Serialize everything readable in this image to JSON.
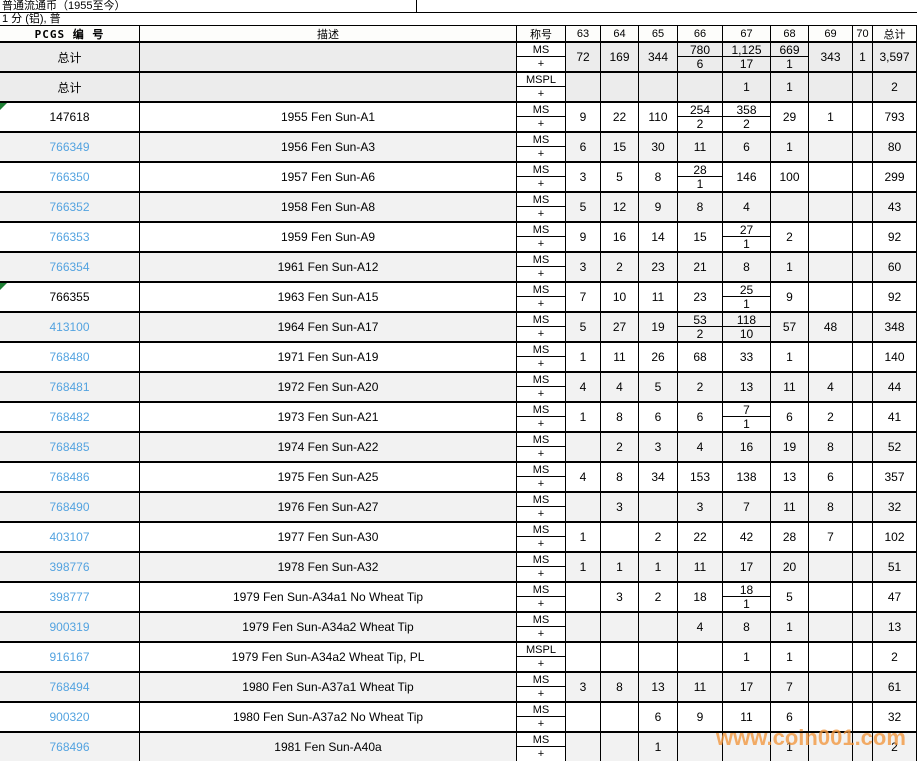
{
  "page": {
    "title": "普通流通币（1955至今）",
    "subtitle": "1 分 (铝), 普",
    "watermark": "www.coin001.com"
  },
  "colors": {
    "link_blue": "#53a3e0",
    "watermark_orange": "#f2963c",
    "flag_green": "#1e7e34",
    "stripe_gray": "#f2f2f2",
    "summary_gray": "#ececec"
  },
  "table": {
    "plus_label": "+",
    "headers": {
      "id": "PCGS 编 号",
      "desc": "描述",
      "grade": "称号",
      "grades": [
        "63",
        "64",
        "65",
        "66",
        "67",
        "68",
        "69",
        "70"
      ],
      "total": "总计"
    },
    "summary_rows": [
      {
        "id": "总计",
        "desc": "",
        "grade": "MS",
        "cells": [
          {
            "v": "72"
          },
          {
            "v": "169"
          },
          {
            "v": "344"
          },
          {
            "v": "780",
            "p": "6"
          },
          {
            "v": "1,125",
            "p": "17"
          },
          {
            "v": "669",
            "p": "1"
          },
          {
            "v": "343"
          },
          {
            "v": "1"
          }
        ],
        "total": "3,597"
      },
      {
        "id": "总计",
        "desc": "",
        "grade": "MSPL",
        "cells": [
          null,
          null,
          null,
          null,
          {
            "v": "1"
          },
          {
            "v": "1"
          },
          null,
          null
        ],
        "total": "2"
      }
    ],
    "rows": [
      {
        "id": "147618",
        "link": false,
        "flag": true,
        "desc": "1955 Fen Sun-A1",
        "grade": "MS",
        "cells": [
          {
            "v": "9"
          },
          {
            "v": "22"
          },
          {
            "v": "110"
          },
          {
            "v": "254",
            "p": "2"
          },
          {
            "v": "358",
            "p": "2"
          },
          {
            "v": "29"
          },
          {
            "v": "1"
          },
          null
        ],
        "total": "793"
      },
      {
        "id": "766349",
        "link": true,
        "flag": false,
        "desc": "1956 Fen Sun-A3",
        "grade": "MS",
        "cells": [
          {
            "v": "6"
          },
          {
            "v": "15"
          },
          {
            "v": "30"
          },
          {
            "v": "11"
          },
          {
            "v": "6"
          },
          {
            "v": "1"
          },
          null,
          null
        ],
        "total": "80"
      },
      {
        "id": "766350",
        "link": true,
        "flag": false,
        "desc": "1957 Fen Sun-A6",
        "grade": "MS",
        "cells": [
          {
            "v": "3"
          },
          {
            "v": "5"
          },
          {
            "v": "8"
          },
          {
            "v": "28",
            "p": "1"
          },
          {
            "v": "146"
          },
          {
            "v": "100"
          },
          null,
          null
        ],
        "total": "299"
      },
      {
        "id": "766352",
        "link": true,
        "flag": false,
        "desc": "1958 Fen Sun-A8",
        "grade": "MS",
        "cells": [
          {
            "v": "5"
          },
          {
            "v": "12"
          },
          {
            "v": "9"
          },
          {
            "v": "8"
          },
          {
            "v": "4"
          },
          null,
          null,
          null
        ],
        "total": "43"
      },
      {
        "id": "766353",
        "link": true,
        "flag": false,
        "desc": "1959 Fen Sun-A9",
        "grade": "MS",
        "cells": [
          {
            "v": "9"
          },
          {
            "v": "16"
          },
          {
            "v": "14"
          },
          {
            "v": "15"
          },
          {
            "v": "27",
            "p": "1"
          },
          {
            "v": "2"
          },
          null,
          null
        ],
        "total": "92"
      },
      {
        "id": "766354",
        "link": true,
        "flag": false,
        "desc": "1961 Fen Sun-A12",
        "grade": "MS",
        "cells": [
          {
            "v": "3"
          },
          {
            "v": "2"
          },
          {
            "v": "23"
          },
          {
            "v": "21"
          },
          {
            "v": "8"
          },
          {
            "v": "1"
          },
          null,
          null
        ],
        "total": "60"
      },
      {
        "id": "766355",
        "link": false,
        "flag": true,
        "desc": "1963 Fen Sun-A15",
        "grade": "MS",
        "cells": [
          {
            "v": "7"
          },
          {
            "v": "10"
          },
          {
            "v": "11"
          },
          {
            "v": "23"
          },
          {
            "v": "25",
            "p": "1"
          },
          {
            "v": "9"
          },
          null,
          null
        ],
        "total": "92"
      },
      {
        "id": "413100",
        "link": true,
        "flag": false,
        "desc": "1964 Fen Sun-A17",
        "grade": "MS",
        "cells": [
          {
            "v": "5"
          },
          {
            "v": "27"
          },
          {
            "v": "19"
          },
          {
            "v": "53",
            "p": "2"
          },
          {
            "v": "118",
            "p": "10"
          },
          {
            "v": "57"
          },
          {
            "v": "48"
          },
          null
        ],
        "total": "348"
      },
      {
        "id": "768480",
        "link": true,
        "flag": false,
        "desc": "1971 Fen Sun-A19",
        "grade": "MS",
        "cells": [
          {
            "v": "1"
          },
          {
            "v": "11"
          },
          {
            "v": "26"
          },
          {
            "v": "68"
          },
          {
            "v": "33"
          },
          {
            "v": "1"
          },
          null,
          null
        ],
        "total": "140"
      },
      {
        "id": "768481",
        "link": true,
        "flag": false,
        "desc": "1972 Fen Sun-A20",
        "grade": "MS",
        "cells": [
          {
            "v": "4"
          },
          {
            "v": "4"
          },
          {
            "v": "5"
          },
          {
            "v": "2"
          },
          {
            "v": "13"
          },
          {
            "v": "11"
          },
          {
            "v": "4"
          },
          null
        ],
        "total": "44"
      },
      {
        "id": "768482",
        "link": true,
        "flag": false,
        "desc": "1973 Fen Sun-A21",
        "grade": "MS",
        "cells": [
          {
            "v": "1"
          },
          {
            "v": "8"
          },
          {
            "v": "6"
          },
          {
            "v": "6"
          },
          {
            "v": "7",
            "p": "1"
          },
          {
            "v": "6"
          },
          {
            "v": "2"
          },
          null
        ],
        "total": "41"
      },
      {
        "id": "768485",
        "link": true,
        "flag": false,
        "desc": "1974 Fen Sun-A22",
        "grade": "MS",
        "cells": [
          null,
          {
            "v": "2"
          },
          {
            "v": "3"
          },
          {
            "v": "4"
          },
          {
            "v": "16"
          },
          {
            "v": "19"
          },
          {
            "v": "8"
          },
          null
        ],
        "total": "52"
      },
      {
        "id": "768486",
        "link": true,
        "flag": false,
        "desc": "1975 Fen Sun-A25",
        "grade": "MS",
        "cells": [
          {
            "v": "4"
          },
          {
            "v": "8"
          },
          {
            "v": "34"
          },
          {
            "v": "153"
          },
          {
            "v": "138"
          },
          {
            "v": "13"
          },
          {
            "v": "6"
          },
          null
        ],
        "total": "357"
      },
      {
        "id": "768490",
        "link": true,
        "flag": false,
        "desc": "1976 Fen Sun-A27",
        "grade": "MS",
        "cells": [
          null,
          {
            "v": "3"
          },
          null,
          {
            "v": "3"
          },
          {
            "v": "7"
          },
          {
            "v": "11"
          },
          {
            "v": "8"
          },
          null
        ],
        "total": "32"
      },
      {
        "id": "403107",
        "link": true,
        "flag": false,
        "desc": "1977 Fen Sun-A30",
        "grade": "MS",
        "cells": [
          {
            "v": "1"
          },
          null,
          {
            "v": "2"
          },
          {
            "v": "22"
          },
          {
            "v": "42"
          },
          {
            "v": "28"
          },
          {
            "v": "7"
          },
          null
        ],
        "total": "102"
      },
      {
        "id": "398776",
        "link": true,
        "flag": false,
        "desc": "1978 Fen Sun-A32",
        "grade": "MS",
        "cells": [
          {
            "v": "1"
          },
          {
            "v": "1"
          },
          {
            "v": "1"
          },
          {
            "v": "11"
          },
          {
            "v": "17"
          },
          {
            "v": "20"
          },
          null,
          null
        ],
        "total": "51"
      },
      {
        "id": "398777",
        "link": true,
        "flag": false,
        "desc": "1979 Fen Sun-A34a1 No Wheat Tip",
        "grade": "MS",
        "cells": [
          null,
          {
            "v": "3"
          },
          {
            "v": "2"
          },
          {
            "v": "18"
          },
          {
            "v": "18",
            "p": "1"
          },
          {
            "v": "5"
          },
          null,
          null
        ],
        "total": "47"
      },
      {
        "id": "900319",
        "link": true,
        "flag": false,
        "desc": "1979 Fen Sun-A34a2 Wheat Tip",
        "grade": "MS",
        "cells": [
          null,
          null,
          null,
          {
            "v": "4"
          },
          {
            "v": "8"
          },
          {
            "v": "1"
          },
          null,
          null
        ],
        "total": "13"
      },
      {
        "id": "916167",
        "link": true,
        "flag": false,
        "desc": "1979 Fen Sun-A34a2 Wheat Tip, PL",
        "grade": "MSPL",
        "cells": [
          null,
          null,
          null,
          null,
          {
            "v": "1"
          },
          {
            "v": "1"
          },
          null,
          null
        ],
        "total": "2"
      },
      {
        "id": "768494",
        "link": true,
        "flag": false,
        "desc": "1980 Fen Sun-A37a1 Wheat Tip",
        "grade": "MS",
        "cells": [
          {
            "v": "3"
          },
          {
            "v": "8"
          },
          {
            "v": "13"
          },
          {
            "v": "11"
          },
          {
            "v": "17"
          },
          {
            "v": "7"
          },
          null,
          null
        ],
        "total": "61"
      },
      {
        "id": "900320",
        "link": true,
        "flag": false,
        "desc": "1980 Fen Sun-A37a2 No Wheat Tip",
        "grade": "MS",
        "cells": [
          null,
          null,
          {
            "v": "6"
          },
          {
            "v": "9"
          },
          {
            "v": "11"
          },
          {
            "v": "6"
          },
          null,
          null
        ],
        "total": "32"
      },
      {
        "id": "768496",
        "link": true,
        "flag": false,
        "desc": "1981 Fen Sun-A40a",
        "grade": "MS",
        "cells": [
          null,
          null,
          {
            "v": "1"
          },
          null,
          null,
          {
            "v": "1"
          },
          null,
          null
        ],
        "total": "2"
      }
    ]
  }
}
